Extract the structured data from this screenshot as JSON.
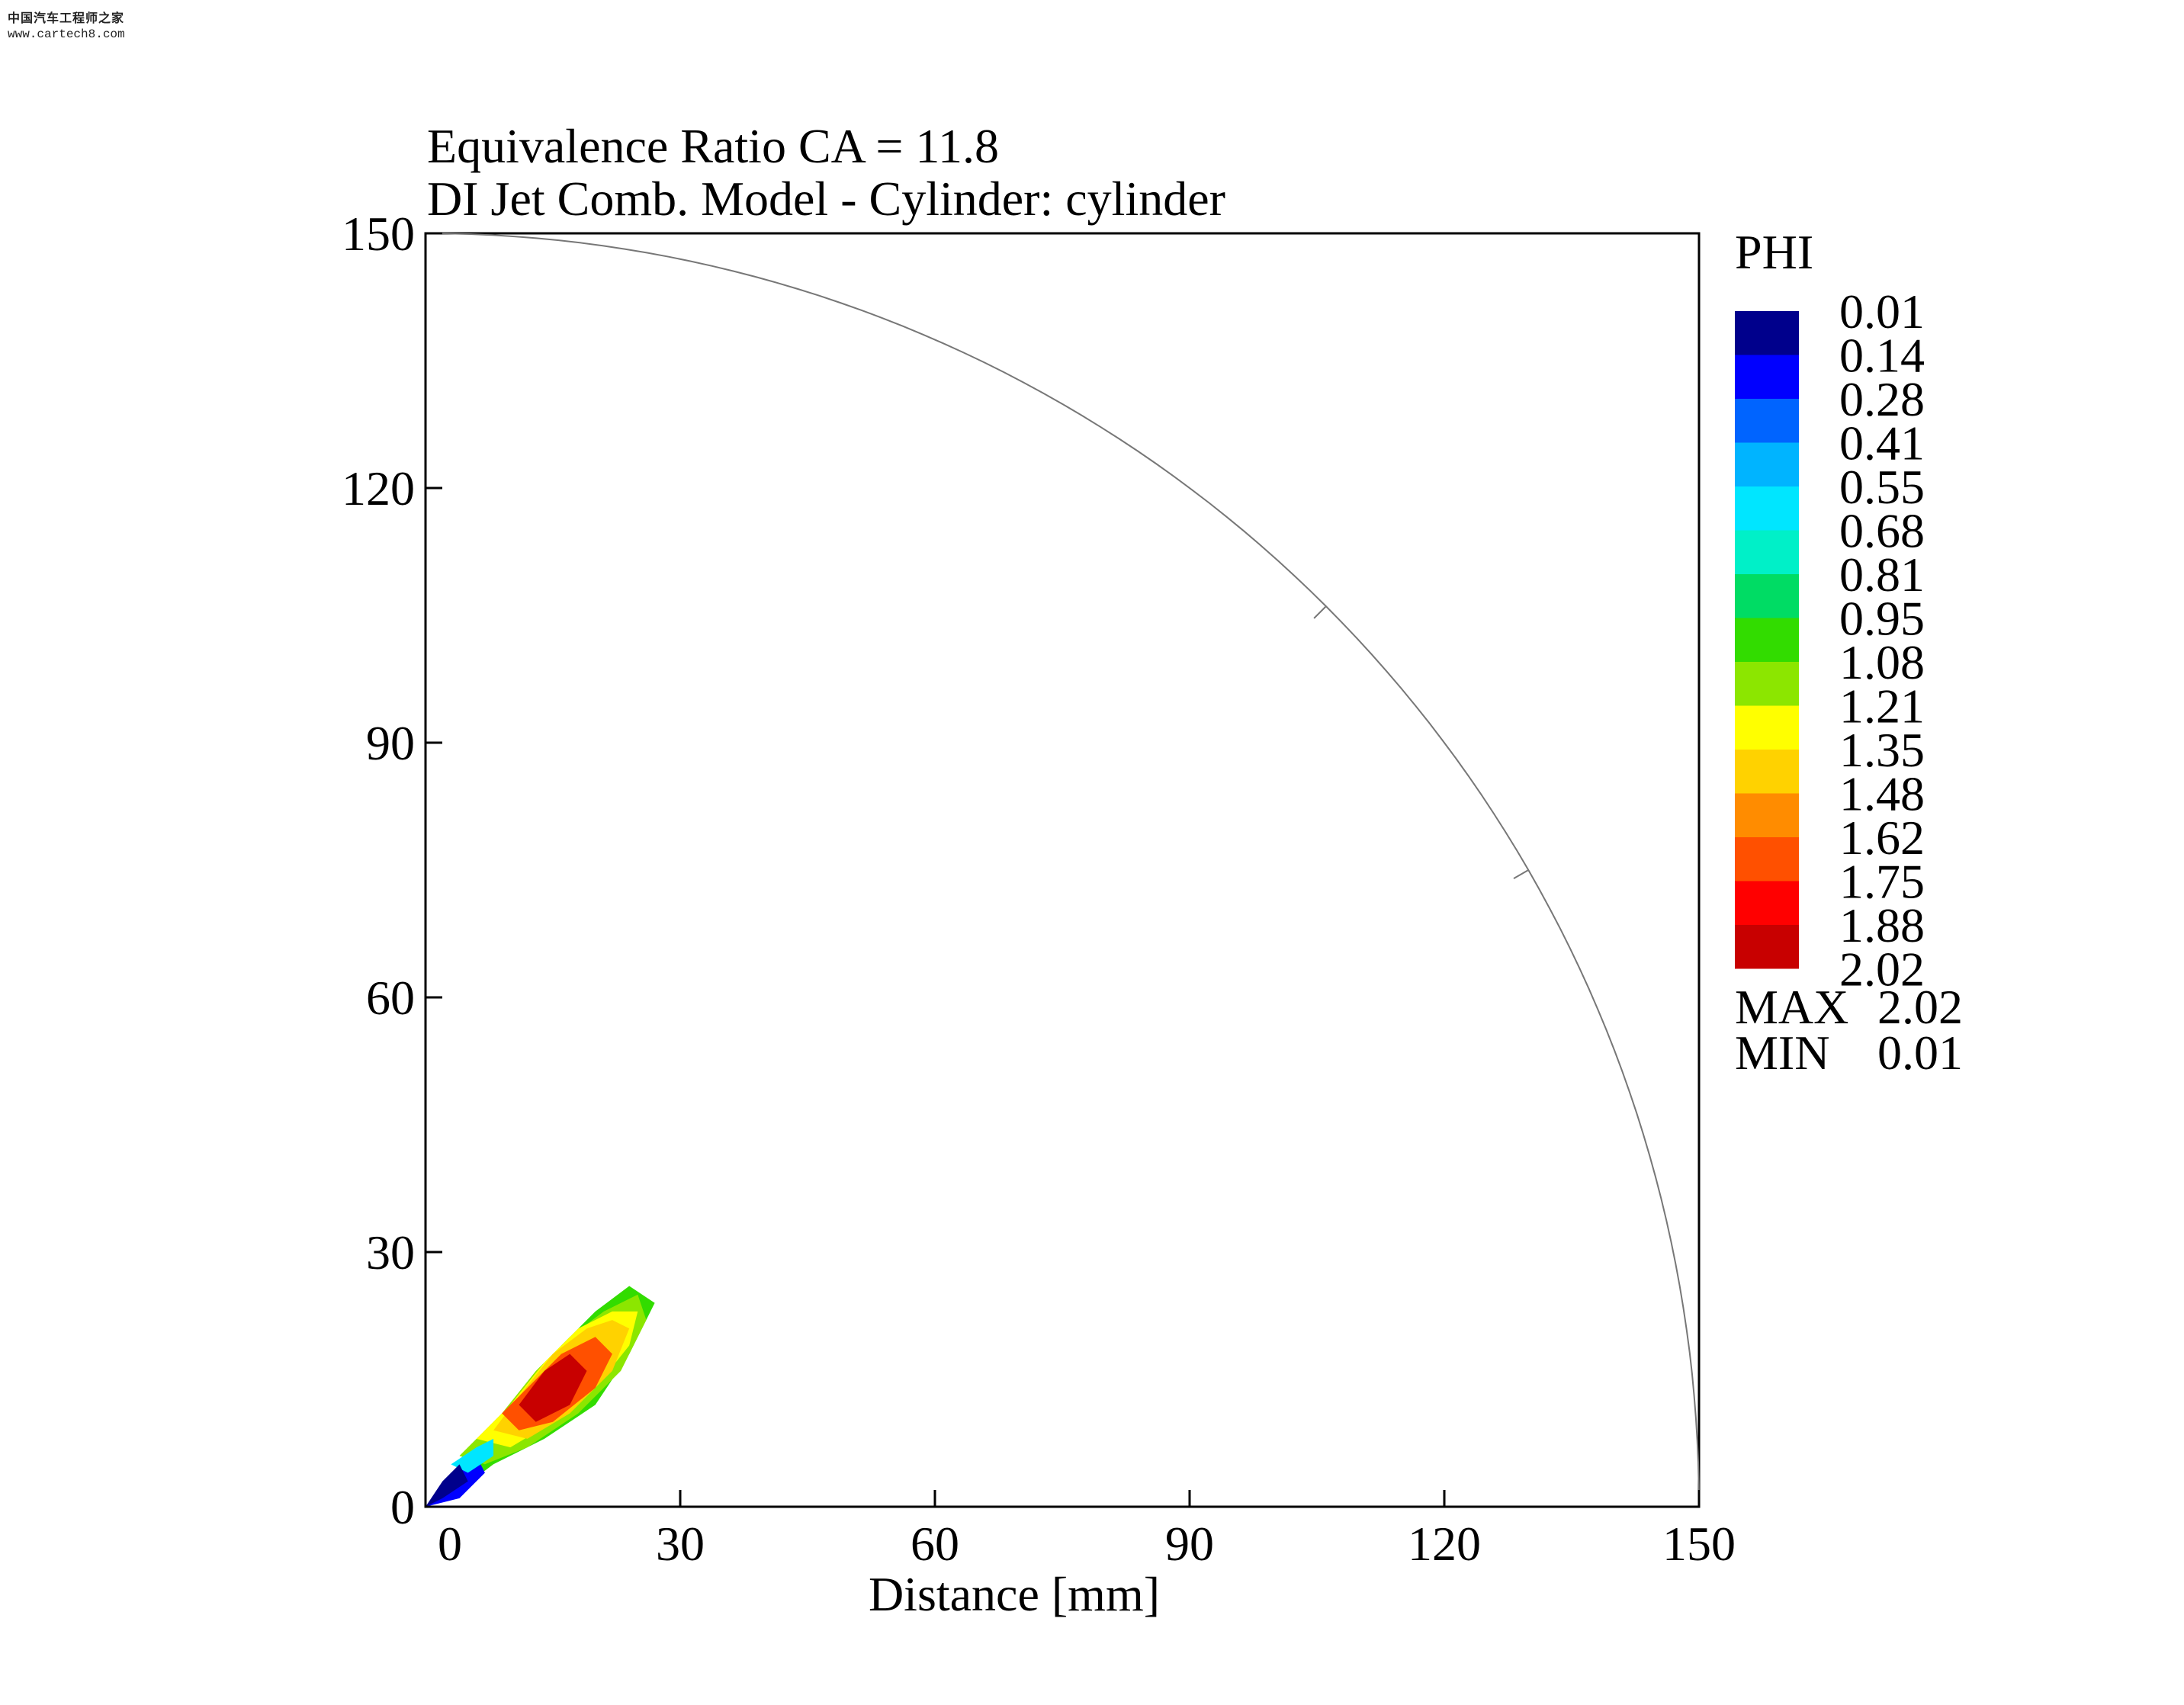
{
  "watermark": {
    "line1": "中国汽车工程师之家",
    "line2": "www.cartech8.com"
  },
  "chart_data": {
    "type": "contour",
    "title": "Equivalence Ratio CA =  11.8",
    "subtitle": "DI Jet Comb. Model - Cylinder: cylinder",
    "xlabel": "Distance [mm]",
    "ylabel": "",
    "xlim": [
      0,
      150
    ],
    "ylim": [
      0,
      150
    ],
    "xticks": [
      "0",
      "30",
      "60",
      "90",
      "120",
      "150"
    ],
    "yticks": [
      "0",
      "30",
      "60",
      "90",
      "120",
      "150"
    ],
    "cylinder_radius": 150,
    "legend": {
      "title": "PHI",
      "levels": [
        "0.01",
        "0.14",
        "0.28",
        "0.41",
        "0.55",
        "0.68",
        "0.81",
        "0.95",
        "1.08",
        "1.21",
        "1.35",
        "1.48",
        "1.62",
        "1.75",
        "1.88",
        "2.02"
      ],
      "colors": [
        "#00008c",
        "#0000ff",
        "#0064ff",
        "#00b4ff",
        "#00e6ff",
        "#00f0c8",
        "#00dc64",
        "#32dc00",
        "#8ce600",
        "#ffff00",
        "#ffd200",
        "#ff8c00",
        "#ff5000",
        "#ff0000",
        "#c80000"
      ],
      "max_label": "MAX",
      "max_value": "2.02",
      "min_label": "MIN",
      "min_value": "0.01"
    },
    "plume": {
      "description_points_mm": {
        "outer": [
          [
            0,
            0
          ],
          [
            5,
            5
          ],
          [
            10,
            10
          ],
          [
            13,
            15
          ],
          [
            16,
            19
          ],
          [
            20,
            23
          ],
          [
            24,
            26
          ],
          [
            27,
            24
          ],
          [
            24,
            18
          ],
          [
            20,
            12
          ],
          [
            14,
            8
          ],
          [
            8,
            5
          ],
          [
            4,
            2
          ]
        ],
        "green": [
          [
            4,
            6
          ],
          [
            9,
            11
          ],
          [
            13,
            16
          ],
          [
            17,
            20
          ],
          [
            21,
            23
          ],
          [
            25,
            25
          ],
          [
            26,
            22
          ],
          [
            23,
            16
          ],
          [
            18,
            11
          ],
          [
            12,
            7
          ],
          [
            7,
            5
          ]
        ],
        "yellow": [
          [
            6,
            8
          ],
          [
            10,
            12
          ],
          [
            14,
            17
          ],
          [
            18,
            21
          ],
          [
            22,
            23
          ],
          [
            25,
            23
          ],
          [
            24,
            19
          ],
          [
            20,
            14
          ],
          [
            15,
            10
          ],
          [
            10,
            7
          ]
        ],
        "orange": [
          [
            8,
            9
          ],
          [
            11,
            13
          ],
          [
            15,
            18
          ],
          [
            19,
            21
          ],
          [
            22,
            22
          ],
          [
            24,
            21
          ],
          [
            22,
            16
          ],
          [
            17,
            11
          ],
          [
            12,
            8
          ]
        ],
        "red": [
          [
            9,
            11
          ],
          [
            12,
            14
          ],
          [
            16,
            18
          ],
          [
            20,
            20
          ],
          [
            22,
            18
          ],
          [
            20,
            14
          ],
          [
            15,
            10
          ],
          [
            11,
            9
          ]
        ],
        "darkred": [
          [
            11,
            12
          ],
          [
            14,
            16
          ],
          [
            17,
            18
          ],
          [
            19,
            16
          ],
          [
            17,
            12
          ],
          [
            13,
            10
          ]
        ],
        "blue": [
          [
            0,
            0
          ],
          [
            3,
            4
          ],
          [
            6,
            6
          ],
          [
            7,
            4
          ],
          [
            4,
            1
          ]
        ]
      }
    }
  }
}
